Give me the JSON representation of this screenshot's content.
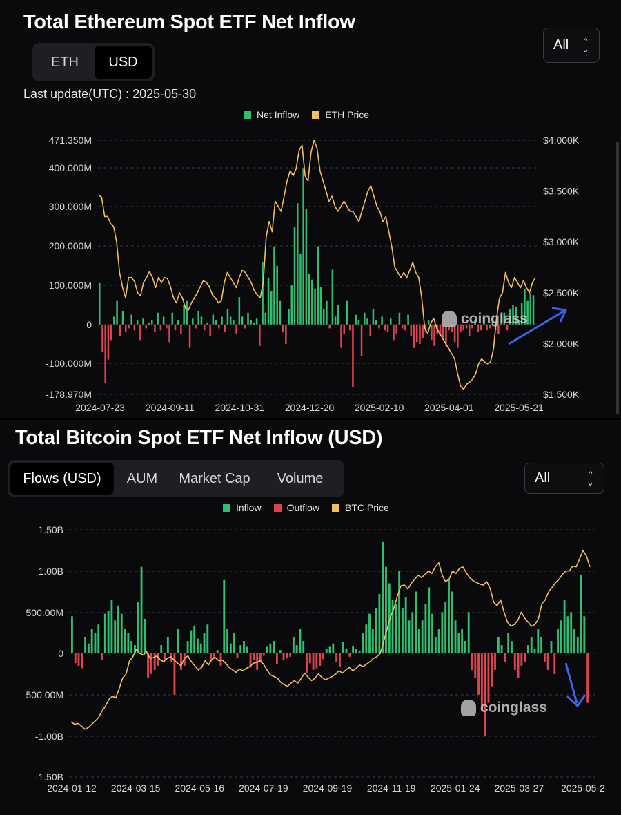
{
  "eth": {
    "title": "Total Ethereum Spot ETF Net Inflow",
    "tabs": [
      "ETH",
      "USD"
    ],
    "active_tab": 1,
    "range_select": "All",
    "last_update": "Last update(UTC) : 2025-05-30",
    "legend": [
      "Net Inflow",
      "ETH Price"
    ],
    "watermark": "coinglass",
    "colors": {
      "inflow": "#2fbf71",
      "outflow": "#e0424f",
      "price": "#f2c063",
      "arrow": "#3d63e6"
    }
  },
  "btc": {
    "title": "Total Bitcoin Spot ETF Net Inflow (USD)",
    "tabs": [
      "Flows (USD)",
      "AUM",
      "Market Cap",
      "Volume"
    ],
    "active_tab": 0,
    "range_select": "All",
    "legend": [
      "Inflow",
      "Outflow",
      "BTC Price"
    ],
    "watermark": "coinglass",
    "colors": {
      "inflow": "#2fbf71",
      "outflow": "#e0424f",
      "price": "#f2c063",
      "arrow": "#3d63e6"
    }
  },
  "chart_data": [
    {
      "type": "bar",
      "title": "Total Ethereum Spot ETF Net Inflow",
      "left_axis_ticks": [
        "471.350M",
        "400.000M",
        "300.000M",
        "200.000M",
        "100.000M",
        "0",
        "-100.000M",
        "-178.970M"
      ],
      "right_axis_ticks": [
        "$4.000K",
        "$3.500K",
        "$3.000K",
        "$2.500K",
        "$2.000K",
        "$1.500K"
      ],
      "x_ticks": [
        "2024-07-23",
        "2024-09-11",
        "2024-10-31",
        "2024-12-20",
        "2025-02-10",
        "2025-04-01",
        "2025-05-21"
      ],
      "ylim": [
        -178970000,
        471350000
      ],
      "y2lim": [
        1500,
        4000
      ],
      "grid": true,
      "legend_position": "top-center",
      "series": [
        {
          "name": "Net Inflow",
          "type": "bar",
          "unit": "M USD",
          "values": [
            106,
            -70,
            -150,
            -90,
            -40,
            20,
            60,
            -30,
            35,
            -20,
            -10,
            25,
            -15,
            10,
            -40,
            15,
            -10,
            5,
            10,
            -20,
            30,
            -15,
            20,
            -10,
            -45,
            30,
            -15,
            10,
            -25,
            50,
            60,
            -60,
            15,
            -10,
            35,
            20,
            -15,
            5,
            -30,
            25,
            10,
            -10,
            20,
            -20,
            40,
            20,
            10,
            -25,
            70,
            20,
            -10,
            30,
            10,
            5,
            15,
            -55,
            160,
            30,
            120,
            85,
            200,
            150,
            60,
            -20,
            -50,
            40,
            100,
            250,
            310,
            180,
            400,
            295,
            130,
            115,
            90,
            200,
            95,
            40,
            60,
            -10,
            140,
            20,
            50,
            -60,
            -25,
            60,
            -15,
            -160,
            25,
            10,
            -80,
            30,
            15,
            -30,
            40,
            10,
            -10,
            20,
            -15,
            -20,
            15,
            -40,
            -25,
            30,
            -10,
            -15,
            25,
            -30,
            -60,
            -45,
            -50,
            -35,
            -20,
            10,
            -40,
            -55,
            -25,
            -30,
            -35,
            -55,
            -15,
            -20,
            -45,
            -60,
            -20,
            -15,
            -10,
            -30,
            -10,
            10,
            -20,
            -15,
            15,
            -15,
            -10,
            20,
            -15,
            -25,
            25,
            30,
            -15,
            40,
            50,
            45,
            10,
            55,
            90,
            60,
            80,
            75
          ]
        },
        {
          "name": "ETH Price",
          "type": "line",
          "unit": "USD",
          "values": [
            3460,
            3440,
            3250,
            3250,
            3180,
            3150,
            3000,
            2700,
            2550,
            2450,
            2650,
            2650,
            2610,
            2500,
            2470,
            2600,
            2650,
            2710,
            2650,
            2550,
            2650,
            2600,
            2650,
            2640,
            2560,
            2450,
            2400,
            2500,
            2450,
            2350,
            2330,
            2400,
            2450,
            2500,
            2560,
            2620,
            2600,
            2560,
            2480,
            2450,
            2400,
            2420,
            2600,
            2700,
            2650,
            2600,
            2550,
            2650,
            2720,
            2700,
            2650,
            2600,
            2520,
            2480,
            2450,
            2600,
            3050,
            3200,
            3100,
            3400,
            3350,
            3300,
            3450,
            3600,
            3700,
            3650,
            3720,
            3900,
            3950,
            3650,
            3600,
            3880,
            4000,
            3920,
            3700,
            3600,
            3500,
            3400,
            3450,
            3350,
            3300,
            3350,
            3400,
            3350,
            3300,
            3300,
            3250,
            3200,
            3300,
            3400,
            3500,
            3550,
            3450,
            3350,
            3300,
            3200,
            3250,
            3100,
            2950,
            2750,
            2700,
            2650,
            2700,
            2650,
            2720,
            2800,
            2700,
            2650,
            2450,
            2150,
            2100,
            2200,
            2250,
            2150,
            2100,
            2050,
            2000,
            1950,
            1900,
            1850,
            1700,
            1580,
            1550,
            1600,
            1620,
            1650,
            1700,
            1800,
            1850,
            1820,
            1800,
            1820,
            1950,
            2250,
            2450,
            2500,
            2700,
            2600,
            2550,
            2650,
            2600,
            2550,
            2620,
            2550,
            2500,
            2600,
            2650
          ]
        }
      ]
    },
    {
      "type": "bar",
      "title": "Total Bitcoin Spot ETF Net Inflow (USD)",
      "left_axis_ticks": [
        "1.50B",
        "1.00B",
        "500.00M",
        "0",
        "-500.00M",
        "-1.00B",
        "-1.50B"
      ],
      "x_ticks": [
        "2024-01-12",
        "2024-03-15",
        "2024-05-16",
        "2024-07-19",
        "2024-09-19",
        "2024-11-19",
        "2025-01-24",
        "2025-03-27",
        "2025-05-2"
      ],
      "ylim": [
        -1500000000,
        1500000000
      ],
      "grid": true,
      "legend_position": "top-center",
      "series": [
        {
          "name": "Inflow / Outflow",
          "type": "bar",
          "unit": "M USD",
          "values": [
            450,
            -120,
            -150,
            -180,
            200,
            120,
            300,
            250,
            350,
            -80,
            480,
            520,
            650,
            400,
            580,
            480,
            300,
            250,
            150,
            100,
            620,
            1050,
            420,
            -300,
            -250,
            -200,
            -150,
            100,
            -80,
            200,
            -100,
            -500,
            300,
            -200,
            -150,
            150,
            280,
            330,
            180,
            120,
            250,
            350,
            -70,
            -60,
            40,
            -150,
            890,
            300,
            120,
            250,
            -60,
            100,
            150,
            80,
            -170,
            -80,
            -200,
            -100,
            -30,
            80,
            120,
            150,
            -130,
            40,
            -80,
            -60,
            -40,
            200,
            100,
            300,
            150,
            -240,
            -120,
            -200,
            -180,
            -150,
            -70,
            50,
            80,
            120,
            -100,
            -160,
            140,
            60,
            -40,
            90,
            50,
            30,
            250,
            350,
            480,
            300,
            550,
            720,
            1350,
            1050,
            850,
            650,
            600,
            1000,
            550,
            680,
            400,
            500,
            750,
            300,
            400,
            600,
            800,
            480,
            200,
            300,
            500,
            620,
            900,
            750,
            400,
            250,
            300,
            150,
            500,
            -200,
            -300,
            -500,
            -700,
            -1000,
            -600,
            -400,
            -200,
            200,
            100,
            -100,
            250,
            150,
            -200,
            -300,
            -150,
            -100,
            100,
            200,
            50,
            300,
            200,
            -100,
            -200,
            150,
            -250,
            300,
            400,
            650,
            450,
            500,
            300,
            200,
            950,
            450,
            -600
          ]
        },
        {
          "name": "BTC Price",
          "type": "line",
          "unit": "USD",
          "values": [
            -830,
            -860,
            -850,
            -880,
            -920,
            -900,
            -860,
            -820,
            -780,
            -700,
            -640,
            -560,
            -520,
            -540,
            -430,
            -300,
            -250,
            -90,
            -40,
            50,
            0,
            -20,
            20,
            -60,
            -50,
            -30,
            -80,
            -100,
            -60,
            -40,
            -80,
            -120,
            -150,
            -60,
            -30,
            -100,
            -150,
            -200,
            -170,
            -90,
            -140,
            -70,
            -50,
            -90,
            -80,
            -120,
            -170,
            -200,
            -230,
            -190,
            -210,
            -180,
            -160,
            -120,
            -110,
            -90,
            -130,
            -200,
            -260,
            -280,
            -300,
            -350,
            -380,
            -400,
            -360,
            -330,
            -360,
            -300,
            -240,
            -290,
            -330,
            -300,
            -250,
            -290,
            -320,
            -300,
            -280,
            -250,
            -210,
            -240,
            -200,
            -170,
            -210,
            -180,
            -140,
            -160,
            -130,
            -100,
            -60,
            -40,
            0,
            150,
            300,
            450,
            550,
            700,
            820,
            830,
            780,
            850,
            900,
            950,
            920,
            960,
            1000,
            970,
            1050,
            1100,
            950,
            870,
            900,
            1000,
            970,
            1030,
            1050,
            980,
            920,
            880,
            860,
            840,
            830,
            870,
            780,
            620,
            580,
            650,
            500,
            380,
            330,
            350,
            400,
            500,
            430,
            380,
            330,
            350,
            420,
            600,
            650,
            750,
            800,
            860,
            900,
            960,
            1000,
            1000,
            1060,
            1050,
            1150,
            1250,
            1180,
            1050
          ]
        }
      ]
    }
  ]
}
